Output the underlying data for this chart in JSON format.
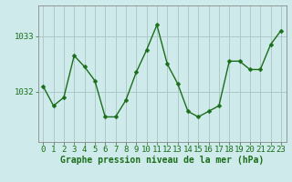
{
  "x": [
    0,
    1,
    2,
    3,
    4,
    5,
    6,
    7,
    8,
    9,
    10,
    11,
    12,
    13,
    14,
    15,
    16,
    17,
    18,
    19,
    20,
    21,
    22,
    23
  ],
  "y": [
    1032.1,
    1031.75,
    1031.9,
    1032.65,
    1032.45,
    1032.2,
    1031.55,
    1031.55,
    1031.85,
    1032.35,
    1032.75,
    1033.2,
    1032.5,
    1032.15,
    1031.65,
    1031.55,
    1031.65,
    1031.75,
    1032.55,
    1032.55,
    1032.4,
    1032.4,
    1032.85,
    1033.1
  ],
  "line_color": "#1a6e1a",
  "marker": "D",
  "marker_size": 2.5,
  "bg_color": "#ceeaea",
  "grid_color": "#b0c8c8",
  "xlabel": "Graphe pression niveau de la mer (hPa)",
  "ytick_values": [
    1032,
    1033
  ],
  "ytick_labels": [
    "1032",
    "1033"
  ],
  "ylim": [
    1031.1,
    1033.55
  ],
  "xlim": [
    -0.5,
    23.5
  ],
  "xlabel_fontsize": 7,
  "tick_fontsize": 6.5
}
